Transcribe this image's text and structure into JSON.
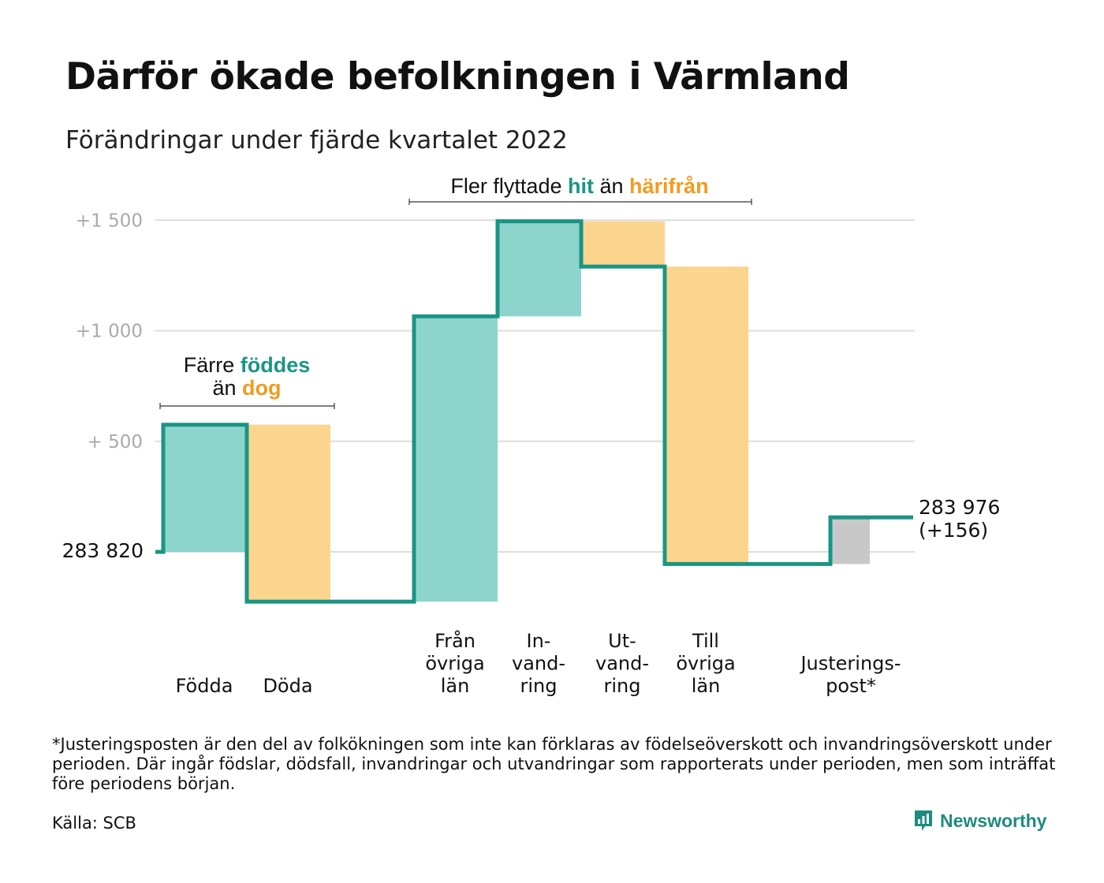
{
  "title": "Därför ökade befolkningen i Värmland",
  "subtitle": "Förändringar under fjärde kvartalet 2022",
  "colors": {
    "increase": "#8dd5cc",
    "decrease": "#fbd58d",
    "adjustment": "#c8c8c8",
    "line": "#1b9585",
    "accent_teal": "#1b9585",
    "accent_orange": "#f39c1f",
    "grid": "#dddddd",
    "tick_text": "#aaaaaa"
  },
  "annotations": {
    "births": {
      "line1_prefix": "Färre ",
      "line1_highlight": "föddes",
      "line2_prefix": "än ",
      "line2_highlight": "dog"
    },
    "migration": {
      "prefix": "Fler flyttade ",
      "highlight1": "hit",
      "middle": " än ",
      "highlight2": "härifrån"
    }
  },
  "chart_data": {
    "type": "waterfall",
    "start_label": "283 820",
    "end_label_line1": "283 976",
    "end_label_line2": "(+156)",
    "baseline": 283820,
    "ylim": [
      -225,
      1560
    ],
    "y_ticks": [
      {
        "value": 1500,
        "label": "+1 500"
      },
      {
        "value": 1000,
        "label": "+1 000"
      },
      {
        "value": 500,
        "label": "+ 500"
      }
    ],
    "steps": [
      {
        "name": "Födda",
        "label_lines": [
          "Födda"
        ],
        "value": 575,
        "kind": "increase"
      },
      {
        "name": "Döda",
        "label_lines": [
          "Döda"
        ],
        "value": -800,
        "kind": "decrease"
      },
      {
        "name": "Från övriga län",
        "label_lines": [
          "Från",
          "övriga",
          "län"
        ],
        "value": 1290,
        "kind": "increase"
      },
      {
        "name": "Invandring",
        "label_lines": [
          "In-",
          "vand-",
          "ring"
        ],
        "value": 430,
        "kind": "increase"
      },
      {
        "name": "Utvandring",
        "label_lines": [
          "Ut-",
          "vand-",
          "ring"
        ],
        "value": -205,
        "kind": "decrease"
      },
      {
        "name": "Till övriga län",
        "label_lines": [
          "Till",
          "övriga",
          "län"
        ],
        "value": -1345,
        "kind": "decrease"
      },
      {
        "name": "Justeringspost*",
        "label_lines": [
          "Justerings-",
          "post*"
        ],
        "value": 211,
        "kind": "adjustment"
      }
    ],
    "net_change": 156
  },
  "footnote": "*Justeringsposten är den del av folkökningen som inte kan förklaras av födelseöverskott och invandringsöverskott under perioden. Där ingår födslar, dödsfall, invandringar och utvandringar som rapporterats under perioden, men som inträffat före periodens början.",
  "source": "Källa: SCB",
  "logo_text": "Newsworthy"
}
